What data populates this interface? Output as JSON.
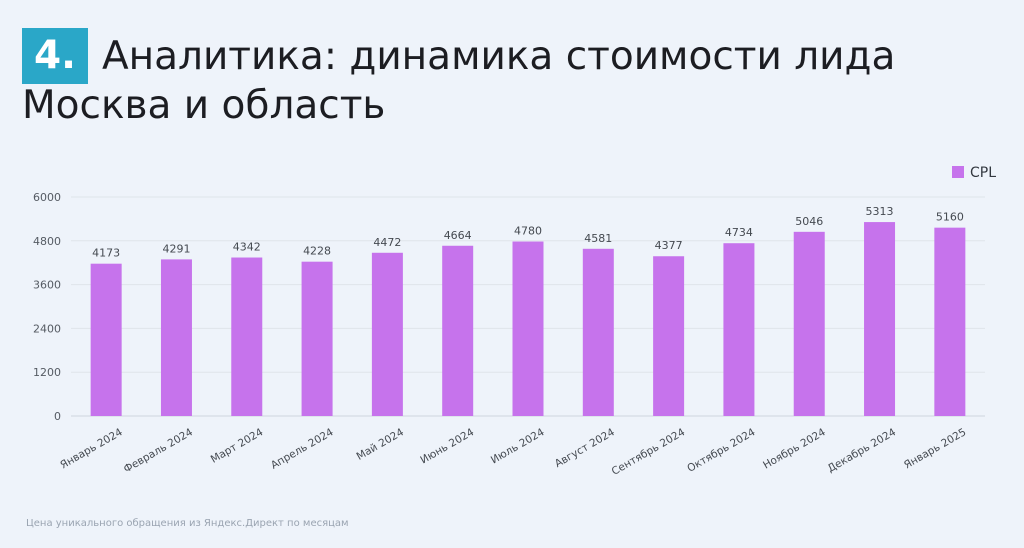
{
  "header": {
    "badge": "4.",
    "title_line1": "Аналитика: динамика стоимости лида",
    "title_line2": "Москва и область"
  },
  "footnote": "Цена уникального обращения из Яндекс.Директ по месяцам",
  "chart_data": {
    "type": "bar",
    "categories": [
      "Январь 2024",
      "Февраль 2024",
      "Март 2024",
      "Апрель 2024",
      "Май 2024",
      "Июнь 2024",
      "Июль 2024",
      "Август 2024",
      "Сентябрь 2024",
      "Октябрь 2024",
      "Ноябрь 2024",
      "Декабрь 2024",
      "Январь 2025"
    ],
    "series": [
      {
        "name": "CPL",
        "color": "#c673ec",
        "values": [
          4173,
          4291,
          4342,
          4228,
          4472,
          4664,
          4780,
          4581,
          4377,
          4734,
          5046,
          5313,
          5160
        ]
      }
    ],
    "y_ticks": [
      0,
      1200,
      2400,
      3600,
      4800,
      6000
    ],
    "ylim": [
      0,
      6000
    ],
    "grid": true,
    "legend_position": "top-right",
    "data_labels": true
  }
}
